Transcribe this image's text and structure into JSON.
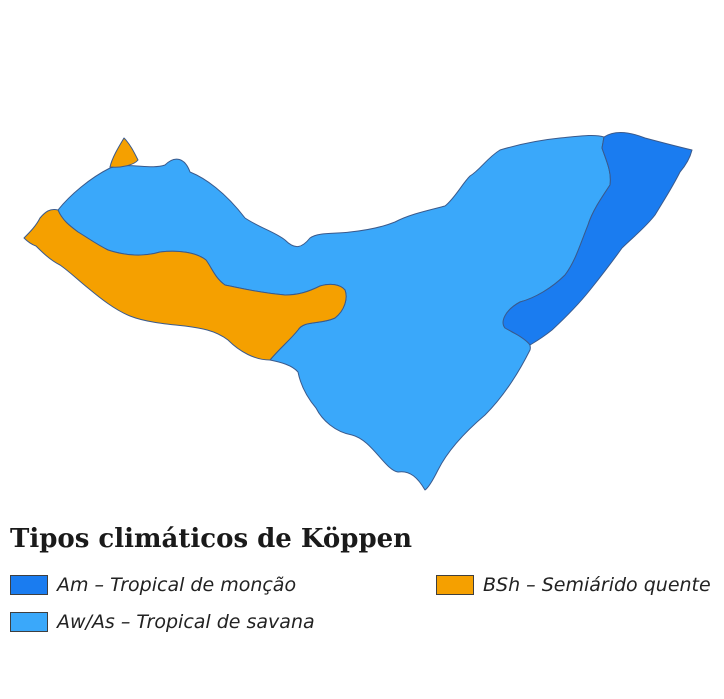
{
  "legend": {
    "title": "Tipos climáticos de Köppen",
    "items": [
      {
        "label": "Am – Tropical de monção",
        "color": "#1a7cf0"
      },
      {
        "label": "Aw/As – Tropical de savana",
        "color": "#3aa8fa"
      },
      {
        "label": "BSh – Semiárido quente",
        "color": "#f5a000"
      }
    ]
  },
  "map": {
    "regions": [
      {
        "name": "Aw/As",
        "color": "#3aa8fa"
      },
      {
        "name": "BSh",
        "color": "#f5a000"
      },
      {
        "name": "Am",
        "color": "#1a7cf0"
      }
    ],
    "border_color": "#3a5a8c"
  }
}
